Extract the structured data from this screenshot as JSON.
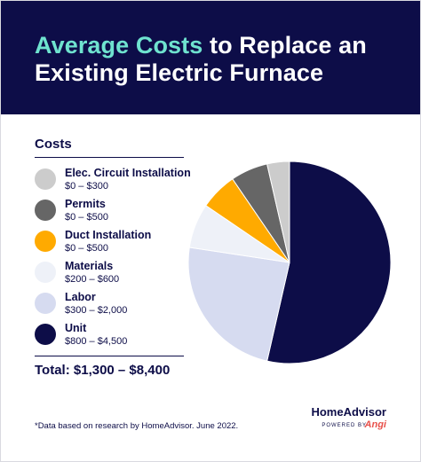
{
  "header": {
    "title_accent": "Average Costs",
    "title_rest_line1": " to Replace an",
    "title_line2": "Existing Electric Furnace"
  },
  "legend": {
    "heading": "Costs",
    "items": [
      {
        "label": "Elec. Circuit Installation",
        "range": "$0 – $300",
        "color": "#cccccc"
      },
      {
        "label": "Permits",
        "range": "$0 – $500",
        "color": "#666666"
      },
      {
        "label": "Duct Installation",
        "range": "$0 – $500",
        "color": "#ffaa00"
      },
      {
        "label": "Materials",
        "range": "$200 – $600",
        "color": "#eef1f8"
      },
      {
        "label": "Labor",
        "range": "$300 – $2,000",
        "color": "#d6dbf0"
      },
      {
        "label": "Unit",
        "range": "$800 – $4,500",
        "color": "#0d0d48"
      }
    ],
    "total": "Total: $1,300 – $8,400"
  },
  "footer": {
    "footnote": "*Data based on research by HomeAdvisor. June 2022.",
    "brand": "HomeAdvisor",
    "powered_by": "POWERED BY",
    "angi": "Angi"
  },
  "chart_data": {
    "type": "pie",
    "title": "Average Costs to Replace an Existing Electric Furnace",
    "legend_position": "left",
    "slices": [
      {
        "name": "Unit",
        "value": 4500,
        "color": "#0d0d48"
      },
      {
        "name": "Labor",
        "value": 2000,
        "color": "#d6dbf0"
      },
      {
        "name": "Materials",
        "value": 600,
        "color": "#eef1f8"
      },
      {
        "name": "Duct Installation",
        "value": 500,
        "color": "#ffaa00"
      },
      {
        "name": "Permits",
        "value": 500,
        "color": "#666666"
      },
      {
        "name": "Elec. Circuit Installation",
        "value": 300,
        "color": "#cccccc"
      }
    ]
  }
}
